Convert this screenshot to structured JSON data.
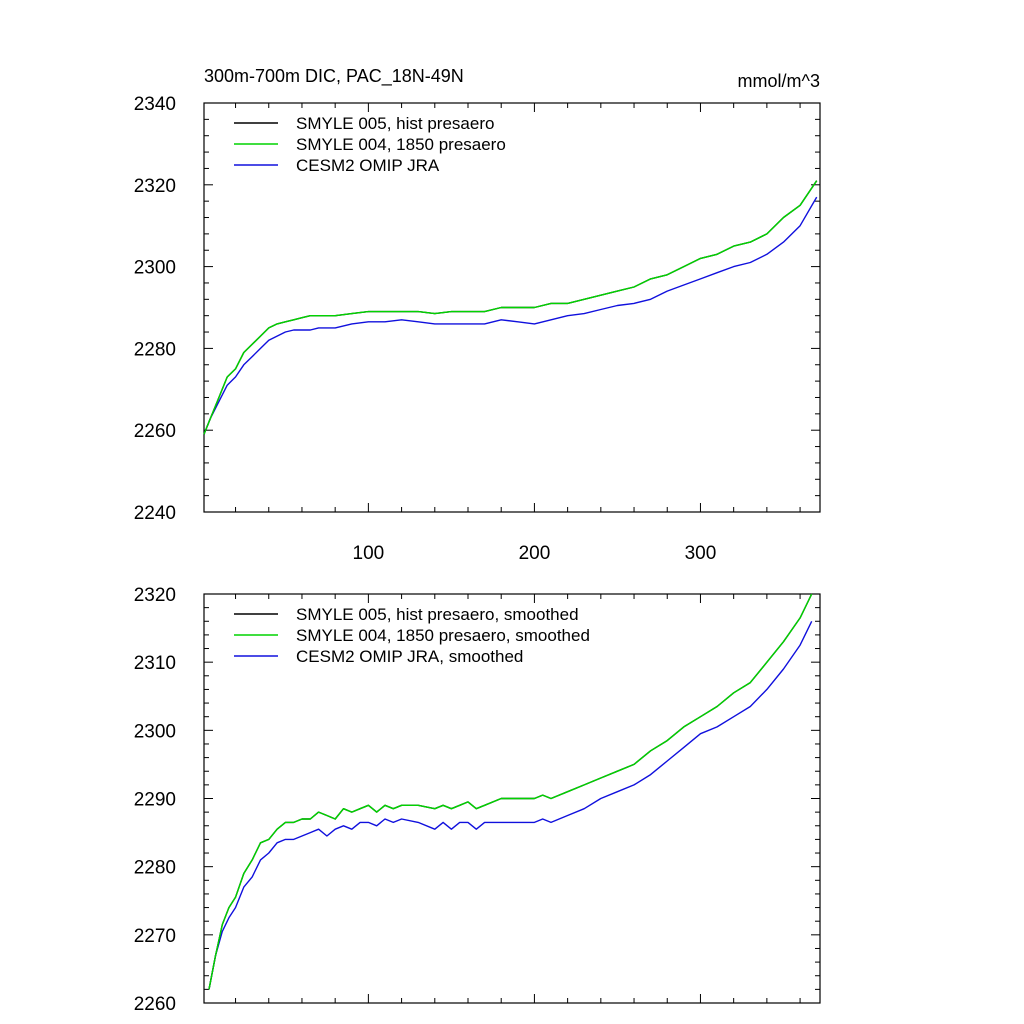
{
  "figure": {
    "title_left": "300m-700m DIC, PAC_18N-49N",
    "title_right": "mmol/m^3"
  },
  "chart_data": [
    {
      "type": "line",
      "title": "300m-700m DIC, PAC_18N-49N",
      "units": "mmol/m^3",
      "xlabel": "",
      "ylabel": "",
      "xlim": [
        1,
        372
      ],
      "ylim": [
        2240,
        2340
      ],
      "yticks": [
        2240,
        2260,
        2280,
        2300,
        2320,
        2340
      ],
      "xticks": [
        100,
        200,
        300
      ],
      "legend_position": "top-left",
      "series": [
        {
          "name": "SMYLE 005, hist presaero",
          "color": "#000000",
          "x": [
            1,
            5,
            10,
            15,
            20,
            25,
            30,
            35,
            40,
            45,
            50,
            55,
            60,
            65,
            70,
            75,
            80,
            90,
            100,
            110,
            120,
            130,
            140,
            150,
            160,
            170,
            180,
            190,
            200,
            210,
            220,
            230,
            240,
            250,
            260,
            270,
            280,
            290,
            300,
            310,
            320,
            330,
            340,
            350,
            360,
            370
          ],
          "values": [
            2259,
            2263,
            2268,
            2273,
            2275,
            2279,
            2281,
            2283,
            2285,
            2286,
            2286.5,
            2287,
            2287.5,
            2288,
            2288,
            2288,
            2288,
            2288.5,
            2289,
            2289,
            2289,
            2289,
            2288.5,
            2289,
            2289,
            2289,
            2290,
            2290,
            2290,
            2291,
            2291,
            2292,
            2293,
            2294,
            2295,
            2297,
            2298,
            2300,
            2302,
            2303,
            2305,
            2306,
            2308,
            2312,
            2315,
            2321
          ]
        },
        {
          "name": "SMYLE 004, 1850 presaero",
          "color": "#00d400",
          "x": [
            1,
            5,
            10,
            15,
            20,
            25,
            30,
            35,
            40,
            45,
            50,
            55,
            60,
            65,
            70,
            75,
            80,
            90,
            100,
            110,
            120,
            130,
            140,
            150,
            160,
            170,
            180,
            190,
            200,
            210,
            220,
            230,
            240,
            250,
            260,
            270,
            280,
            290,
            300,
            310,
            320,
            330,
            340,
            350,
            360,
            370
          ],
          "values": [
            2259,
            2263,
            2268,
            2273,
            2275,
            2279,
            2281,
            2283,
            2285,
            2286,
            2286.5,
            2287,
            2287.5,
            2288,
            2288,
            2288,
            2288,
            2288.5,
            2289,
            2289,
            2289,
            2289,
            2288.5,
            2289,
            2289,
            2289,
            2290,
            2290,
            2290,
            2291,
            2291,
            2292,
            2293,
            2294,
            2295,
            2297,
            2298,
            2300,
            2302,
            2303,
            2305,
            2306,
            2308,
            2312,
            2315,
            2321
          ]
        },
        {
          "name": "CESM2 OMIP JRA",
          "color": "#1010dd",
          "x": [
            1,
            5,
            10,
            15,
            20,
            25,
            30,
            35,
            40,
            45,
            50,
            55,
            60,
            65,
            70,
            75,
            80,
            90,
            100,
            110,
            120,
            130,
            140,
            150,
            160,
            170,
            180,
            190,
            200,
            210,
            220,
            230,
            240,
            250,
            260,
            270,
            280,
            290,
            300,
            310,
            320,
            330,
            340,
            350,
            360,
            370
          ],
          "values": [
            2259,
            2263,
            2267,
            2271,
            2273,
            2276,
            2278,
            2280,
            2282,
            2283,
            2284,
            2284.5,
            2284.5,
            2284.5,
            2285,
            2285,
            2285,
            2286,
            2286.5,
            2286.5,
            2287,
            2286.5,
            2286,
            2286,
            2286,
            2286,
            2287,
            2286.5,
            2286,
            2287,
            2288,
            2288.5,
            2289.5,
            2290.5,
            2291,
            2292,
            2294,
            2295.5,
            2297,
            2298.5,
            2300,
            2301,
            2303,
            2306,
            2310,
            2317
          ]
        }
      ]
    },
    {
      "type": "line",
      "title": "",
      "xlabel": "",
      "ylabel": "",
      "xlim": [
        1,
        372
      ],
      "ylim": [
        2260,
        2320
      ],
      "yticks": [
        2260,
        2270,
        2280,
        2290,
        2300,
        2310,
        2320
      ],
      "xticks": [
        100,
        200,
        300
      ],
      "legend_position": "top-left",
      "series": [
        {
          "name": "SMYLE 005, hist presaero, smoothed",
          "color": "#000000",
          "x": [
            4,
            8,
            12,
            16,
            20,
            25,
            30,
            35,
            40,
            45,
            50,
            55,
            60,
            65,
            70,
            75,
            80,
            85,
            90,
            95,
            100,
            105,
            110,
            115,
            120,
            130,
            140,
            145,
            150,
            155,
            160,
            165,
            170,
            180,
            190,
            200,
            205,
            210,
            220,
            230,
            240,
            250,
            260,
            270,
            280,
            290,
            300,
            310,
            320,
            330,
            340,
            350,
            360,
            367
          ],
          "values": [
            2262,
            2267,
            2271.5,
            2274,
            2275.5,
            2279,
            2281,
            2283.5,
            2284,
            2285.5,
            2286.5,
            2286.5,
            2287,
            2287,
            2288,
            2287.5,
            2287,
            2288.5,
            2288,
            2288.5,
            2289,
            2288,
            2289,
            2288.5,
            2289,
            2289,
            2288.5,
            2289,
            2288.5,
            2289,
            2289.5,
            2288.5,
            2289,
            2290,
            2290,
            2290,
            2290.5,
            2290,
            2291,
            2292,
            2293,
            2294,
            2295,
            2297,
            2298.5,
            2300.5,
            2302,
            2303.5,
            2305.5,
            2307,
            2310,
            2313,
            2316.5,
            2320
          ]
        },
        {
          "name": "SMYLE 004, 1850 presaero, smoothed",
          "color": "#00d400",
          "x": [
            4,
            8,
            12,
            16,
            20,
            25,
            30,
            35,
            40,
            45,
            50,
            55,
            60,
            65,
            70,
            75,
            80,
            85,
            90,
            95,
            100,
            105,
            110,
            115,
            120,
            130,
            140,
            145,
            150,
            155,
            160,
            165,
            170,
            180,
            190,
            200,
            205,
            210,
            220,
            230,
            240,
            250,
            260,
            270,
            280,
            290,
            300,
            310,
            320,
            330,
            340,
            350,
            360,
            367
          ],
          "values": [
            2262,
            2267,
            2271.5,
            2274,
            2275.5,
            2279,
            2281,
            2283.5,
            2284,
            2285.5,
            2286.5,
            2286.5,
            2287,
            2287,
            2288,
            2287.5,
            2287,
            2288.5,
            2288,
            2288.5,
            2289,
            2288,
            2289,
            2288.5,
            2289,
            2289,
            2288.5,
            2289,
            2288.5,
            2289,
            2289.5,
            2288.5,
            2289,
            2290,
            2290,
            2290,
            2290.5,
            2290,
            2291,
            2292,
            2293,
            2294,
            2295,
            2297,
            2298.5,
            2300.5,
            2302,
            2303.5,
            2305.5,
            2307,
            2310,
            2313,
            2316.5,
            2320
          ]
        },
        {
          "name": "CESM2 OMIP JRA, smoothed",
          "color": "#1010dd",
          "x": [
            4,
            8,
            12,
            16,
            20,
            25,
            30,
            35,
            40,
            45,
            50,
            55,
            60,
            65,
            70,
            75,
            80,
            85,
            90,
            95,
            100,
            105,
            110,
            115,
            120,
            130,
            140,
            145,
            150,
            155,
            160,
            165,
            170,
            180,
            190,
            200,
            205,
            210,
            220,
            230,
            240,
            250,
            260,
            270,
            280,
            290,
            300,
            310,
            320,
            330,
            340,
            350,
            360,
            367
          ],
          "values": [
            2262,
            2267,
            2270.5,
            2272.5,
            2274,
            2277,
            2278.5,
            2281,
            2282,
            2283.5,
            2284,
            2284,
            2284.5,
            2285,
            2285.5,
            2284.5,
            2285.5,
            2286,
            2285.5,
            2286.5,
            2286.5,
            2286,
            2287,
            2286.5,
            2287,
            2286.5,
            2285.5,
            2286.5,
            2285.5,
            2286.5,
            2286.5,
            2285.5,
            2286.5,
            2286.5,
            2286.5,
            2286.5,
            2287,
            2286.5,
            2287.5,
            2288.5,
            2290,
            2291,
            2292,
            2293.5,
            2295.5,
            2297.5,
            2299.5,
            2300.5,
            2302,
            2303.5,
            2306,
            2309,
            2312.5,
            2316
          ]
        }
      ]
    }
  ]
}
